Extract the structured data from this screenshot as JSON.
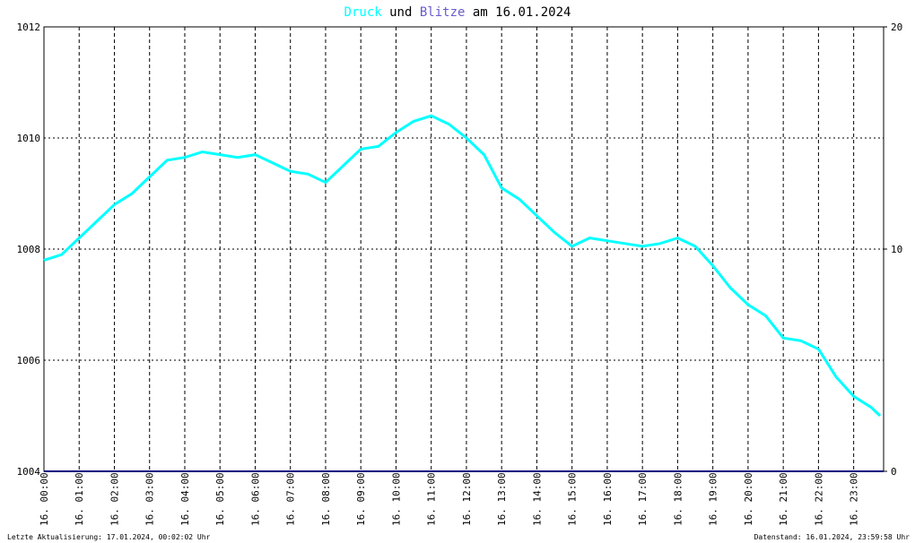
{
  "chart_data": {
    "type": "line",
    "title_link": "und",
    "title_suffix": "am 16.01.2024",
    "footer_left": "Letzte Aktualisierung: 17.01.2024, 00:02:02 Uhr",
    "footer_right": "Datenstand: 16.01.2024, 23:59:58 Uhr",
    "xlim": [
      0,
      23.85
    ],
    "xticks": [
      {
        "value": 0,
        "label": "16. 00:00"
      },
      {
        "value": 1,
        "label": "16. 01:00"
      },
      {
        "value": 2,
        "label": "16. 02:00"
      },
      {
        "value": 3,
        "label": "16. 03:00"
      },
      {
        "value": 4,
        "label": "16. 04:00"
      },
      {
        "value": 5,
        "label": "16. 05:00"
      },
      {
        "value": 6,
        "label": "16. 06:00"
      },
      {
        "value": 7,
        "label": "16. 07:00"
      },
      {
        "value": 8,
        "label": "16. 08:00"
      },
      {
        "value": 9,
        "label": "16. 09:00"
      },
      {
        "value": 10,
        "label": "16. 10:00"
      },
      {
        "value": 11,
        "label": "16. 11:00"
      },
      {
        "value": 12,
        "label": "16. 12:00"
      },
      {
        "value": 13,
        "label": "16. 13:00"
      },
      {
        "value": 14,
        "label": "16. 14:00"
      },
      {
        "value": 15,
        "label": "16. 15:00"
      },
      {
        "value": 16,
        "label": "16. 16:00"
      },
      {
        "value": 17,
        "label": "16. 17:00"
      },
      {
        "value": 18,
        "label": "16. 18:00"
      },
      {
        "value": 19,
        "label": "16. 19:00"
      },
      {
        "value": 20,
        "label": "16. 20:00"
      },
      {
        "value": 21,
        "label": "16. 21:00"
      },
      {
        "value": 22,
        "label": "16. 22:00"
      },
      {
        "value": 23,
        "label": "16. 23:00"
      }
    ],
    "ylim": [
      1004,
      1012
    ],
    "yticks": [
      1004,
      1006,
      1008,
      1010,
      1012
    ],
    "y2lim": [
      0,
      20
    ],
    "y2ticks": [
      0,
      10,
      20
    ],
    "grid": true,
    "series": [
      {
        "name": "Druck",
        "color": "#00ffff",
        "x": [
          0,
          0.5,
          1,
          1.5,
          2,
          2.5,
          3,
          3.5,
          4,
          4.5,
          5,
          5.5,
          6,
          6.5,
          7,
          7.5,
          8,
          8.5,
          9,
          9.5,
          10,
          10.5,
          11,
          11.5,
          12,
          12.5,
          13,
          13.5,
          14,
          14.5,
          15,
          15.5,
          16,
          16.5,
          17,
          17.5,
          18,
          18.5,
          19,
          19.5,
          20,
          20.5,
          21,
          21.5,
          22,
          22.5,
          23,
          23.5,
          23.75
        ],
        "values": [
          1007.8,
          1007.9,
          1008.2,
          1008.5,
          1008.8,
          1009.0,
          1009.3,
          1009.6,
          1009.65,
          1009.75,
          1009.7,
          1009.65,
          1009.7,
          1009.55,
          1009.4,
          1009.35,
          1009.2,
          1009.5,
          1009.8,
          1009.85,
          1010.1,
          1010.3,
          1010.4,
          1010.25,
          1010.0,
          1009.7,
          1009.1,
          1008.9,
          1008.6,
          1008.3,
          1008.05,
          1008.2,
          1008.15,
          1008.1,
          1008.05,
          1008.1,
          1008.2,
          1008.05,
          1007.7,
          1007.3,
          1007.0,
          1006.8,
          1006.4,
          1006.35,
          1006.2,
          1005.7,
          1005.35,
          1005.15,
          1005.0
        ]
      },
      {
        "name": "Blitze",
        "color": "#000080",
        "axis": "y2",
        "x": [
          0,
          23.85
        ],
        "values": [
          0,
          0
        ]
      }
    ]
  }
}
